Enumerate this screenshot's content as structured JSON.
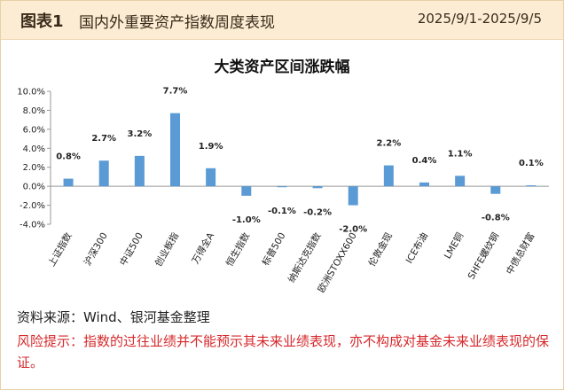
{
  "header": {
    "figure_no": "图表1",
    "title": "国内外重要资产指数周度表现",
    "date_range": "2025/9/1-2025/9/5"
  },
  "chart_data": {
    "type": "bar",
    "title": "大类资产区间涨跌幅",
    "categories": [
      "上证指数",
      "沪深300",
      "中证500",
      "创业板指",
      "万得全A",
      "恒生指数",
      "标普500",
      "纳斯达克指数",
      "欧洲STOXX600",
      "伦敦金现",
      "ICE布油",
      "LME铜",
      "SHFE螺纹钢",
      "中债总财富"
    ],
    "values": [
      0.8,
      2.7,
      3.2,
      7.7,
      1.9,
      -1.0,
      -0.1,
      -0.2,
      -2.0,
      2.2,
      0.4,
      1.1,
      -0.8,
      0.1
    ],
    "value_labels": [
      "0.8%",
      "2.7%",
      "3.2%",
      "7.7%",
      "1.9%",
      "-1.0%",
      "-0.1%",
      "-0.2%",
      "-2.0%",
      "2.2%",
      "0.4%",
      "1.1%",
      "-0.8%",
      "0.1%"
    ],
    "yticks": [
      "10.0%",
      "8.0%",
      "6.0%",
      "4.0%",
      "2.0%",
      "0.0%",
      "-2.0%",
      "-4.0%"
    ],
    "ylim": [
      -4,
      10
    ],
    "bar_color": "#5b9bd5",
    "grid": false
  },
  "footer": {
    "source": "资料来源：Wind、银河基金整理",
    "disclaimer": "风险提示：指数的过往业绩并不能预示其未来业绩表现，亦不构成对基金未来业绩表现的保证。"
  }
}
